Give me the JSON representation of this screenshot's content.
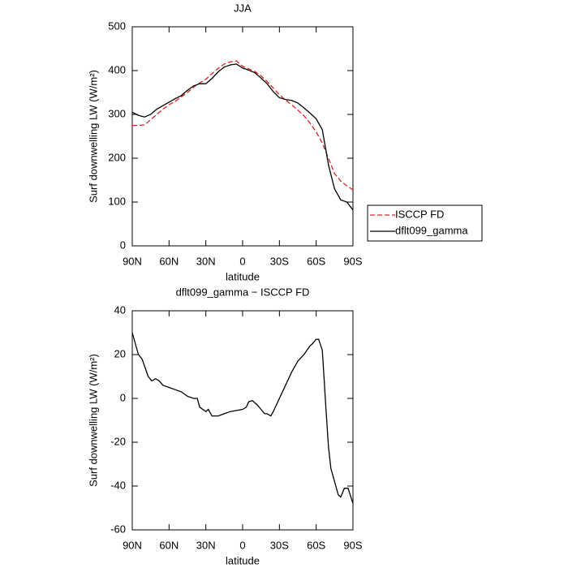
{
  "chart_data": [
    {
      "type": "line",
      "title": "JJA",
      "xlabel": "latitude",
      "ylabel": "Surf downwelling LW (W/m²)",
      "legend": "outside-right",
      "x": [
        90,
        85,
        80,
        75,
        70,
        65,
        60,
        55,
        50,
        45,
        40,
        35,
        30,
        25,
        20,
        15,
        10,
        5,
        0,
        -5,
        -10,
        -15,
        -20,
        -25,
        -30,
        -35,
        -40,
        -45,
        -50,
        -55,
        -60,
        -65,
        -70,
        -75,
        -80,
        -85,
        -90
      ],
      "series": [
        {
          "name": "ISCCP FD",
          "color": "#e02020",
          "style": "dashed",
          "values": [
            275,
            275,
            276,
            288,
            300,
            312,
            322,
            330,
            340,
            350,
            362,
            372,
            380,
            393,
            405,
            415,
            420,
            422,
            410,
            404,
            398,
            388,
            375,
            360,
            345,
            333,
            322,
            310,
            297,
            280,
            260,
            235,
            200,
            165,
            148,
            137,
            128
          ]
        },
        {
          "name": "dflt099_gamma",
          "color": "#000000",
          "style": "solid",
          "values": [
            305,
            298,
            294,
            300,
            312,
            320,
            328,
            336,
            343,
            355,
            365,
            370,
            370,
            382,
            397,
            408,
            413,
            415,
            406,
            401,
            395,
            383,
            370,
            352,
            338,
            334,
            332,
            326,
            315,
            303,
            290,
            265,
            185,
            130,
            105,
            100,
            82
          ]
        }
      ],
      "xlim": [
        90,
        -90
      ],
      "xticks": [
        {
          "value": 90,
          "label": "90N"
        },
        {
          "value": 60,
          "label": "60N"
        },
        {
          "value": 30,
          "label": "30N"
        },
        0,
        {
          "value": -30,
          "label": "30S"
        },
        {
          "value": -60,
          "label": "60S"
        },
        {
          "value": -90,
          "label": "90S"
        }
      ],
      "ylim": [
        0,
        500
      ],
      "yticks": [
        0,
        100,
        200,
        300,
        400,
        500
      ]
    },
    {
      "type": "line",
      "title": "dflt099_gamma − ISCCP FD",
      "xlabel": "latitude",
      "ylabel": "Surf downwelling LW (W/m²)",
      "x": [
        90,
        85,
        82,
        77,
        74,
        71,
        68,
        65,
        60,
        55,
        50,
        45,
        40,
        37,
        35,
        30,
        28,
        25,
        20,
        15,
        10,
        5,
        0,
        -3,
        -5,
        -8,
        -12,
        -15,
        -18,
        -20,
        -23,
        -25,
        -30,
        -35,
        -40,
        -45,
        -50,
        -55,
        -57,
        -60,
        -62,
        -65,
        -68,
        -70,
        -72,
        -75,
        -78,
        -80,
        -83,
        -86,
        -90
      ],
      "values": [
        30,
        20,
        18,
        10,
        8,
        9,
        8,
        6,
        5,
        4,
        3,
        1,
        0,
        0,
        -4,
        -6,
        -5,
        -8,
        -8,
        -7,
        -6,
        -5.5,
        -5,
        -4,
        -1.5,
        -1,
        -3,
        -5,
        -7,
        -7,
        -8,
        -6,
        0,
        6,
        12,
        17,
        20,
        24,
        25,
        27,
        27,
        22,
        -5,
        -22,
        -32,
        -38,
        -44,
        -45,
        -41,
        -41,
        -48
      ],
      "color": "#000000",
      "xlim": [
        90,
        -90
      ],
      "xticks": [
        {
          "value": 90,
          "label": "90N"
        },
        {
          "value": 60,
          "label": "60N"
        },
        {
          "value": 30,
          "label": "30N"
        },
        0,
        {
          "value": -30,
          "label": "30S"
        },
        {
          "value": -60,
          "label": "60S"
        },
        {
          "value": -90,
          "label": "90S"
        }
      ],
      "ylim": [
        -60,
        40
      ],
      "yticks": [
        -60,
        -40,
        -20,
        0,
        20,
        40
      ]
    }
  ]
}
